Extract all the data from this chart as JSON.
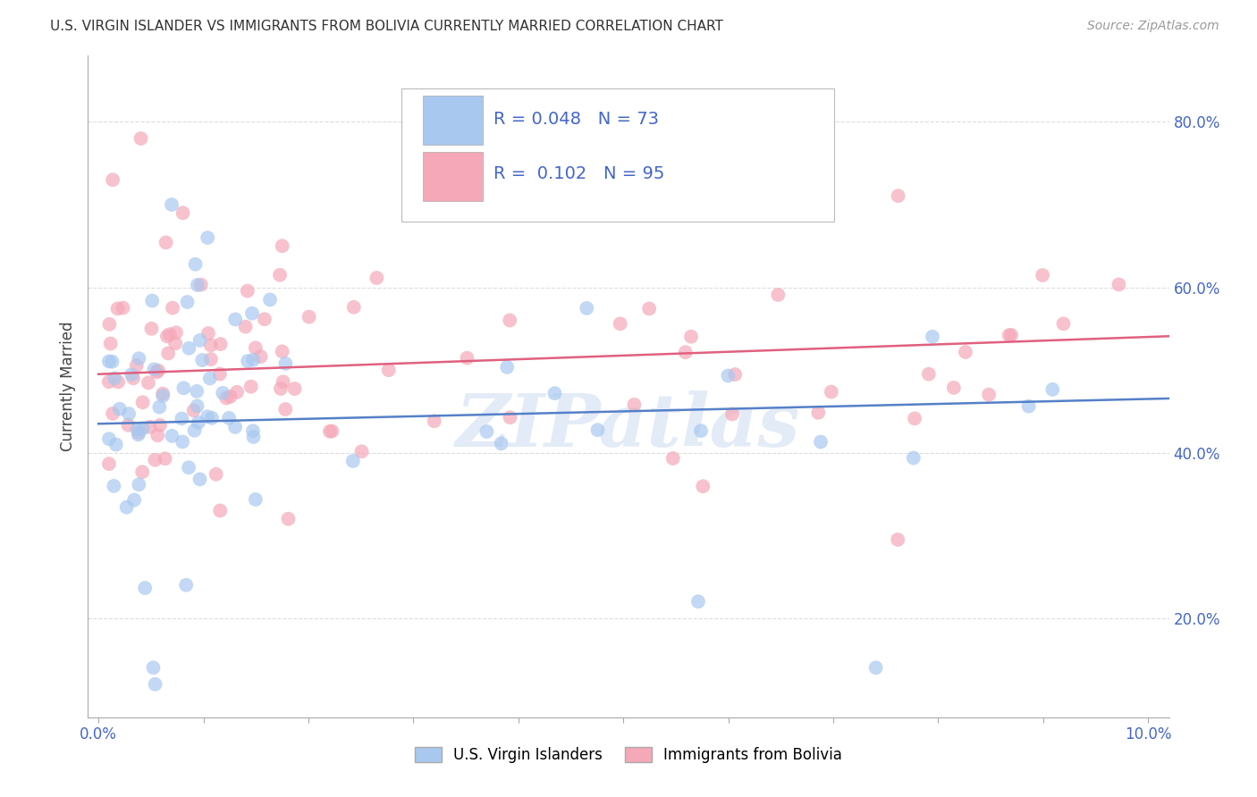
{
  "title": "U.S. VIRGIN ISLANDER VS IMMIGRANTS FROM BOLIVIA CURRENTLY MARRIED CORRELATION CHART",
  "source": "Source: ZipAtlas.com",
  "ylabel": "Currently Married",
  "xlim": [
    -0.001,
    0.102
  ],
  "ylim": [
    0.08,
    0.88
  ],
  "yticks": [
    0.2,
    0.4,
    0.6,
    0.8
  ],
  "ytick_labels": [
    "20.0%",
    "40.0%",
    "60.0%",
    "80.0%"
  ],
  "xtick_left_label": "0.0%",
  "xtick_right_label": "10.0%",
  "legend_R1": "0.048",
  "legend_N1": "73",
  "legend_R2": "0.102",
  "legend_N2": "95",
  "scatter1_color": "#a8c8f0",
  "scatter2_color": "#f5a8b8",
  "trendline1_color": "#5580c8",
  "trendline2_color": "#e06080",
  "watermark_text": "ZIPatlas",
  "watermark_color": "#c8d8f0",
  "background_color": "#ffffff",
  "grid_color": "#dddddd",
  "label_color_blue": "#4466cc",
  "label_color_pink": "#e06080",
  "legend_text_color": "#222222",
  "bottom_legend_blue": "U.S. Virgin Islanders",
  "bottom_legend_pink": "Immigrants from Bolivia"
}
